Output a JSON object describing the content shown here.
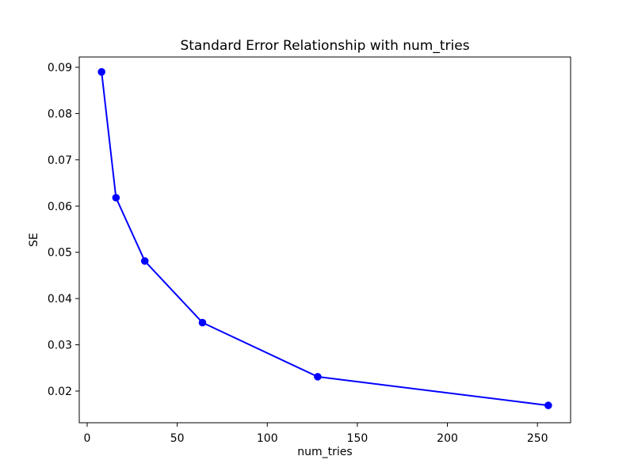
{
  "window": {
    "background_color": "#ffffff",
    "frame_color": "#000000",
    "text_color": "#000000"
  },
  "chart_data": {
    "type": "line",
    "title": "Standard Error Relationship with num_tries",
    "xlabel": "num_tries",
    "ylabel": "SE",
    "series": [
      {
        "name": "SE",
        "x": [
          8,
          16,
          32,
          64,
          128,
          256
        ],
        "y": [
          0.089,
          0.0618,
          0.0481,
          0.0348,
          0.0231,
          0.0169
        ],
        "color": "#0000ff",
        "marker": "circle",
        "line_width": 2,
        "marker_radius": 4.8
      }
    ],
    "xlim": [
      -4.4,
      268.4
    ],
    "ylim": [
      0.01315,
      0.09222
    ],
    "xticks": [
      0,
      50,
      100,
      150,
      200,
      250
    ],
    "xtick_labels": [
      "0",
      "50",
      "100",
      "150",
      "200",
      "250"
    ],
    "yticks": [
      0.02,
      0.03,
      0.04,
      0.05,
      0.06,
      0.07,
      0.08,
      0.09
    ],
    "ytick_labels": [
      "0.02",
      "0.03",
      "0.04",
      "0.05",
      "0.06",
      "0.07",
      "0.08",
      "0.09"
    ],
    "grid": false,
    "legend": null
  }
}
